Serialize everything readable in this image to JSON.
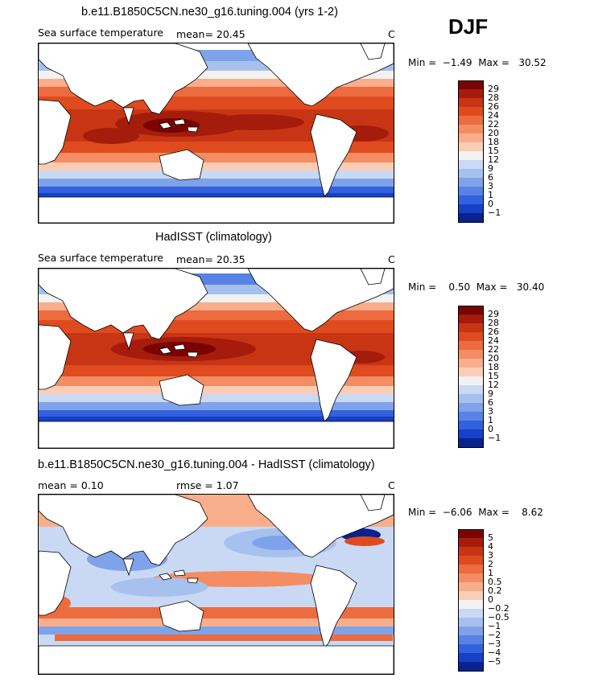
{
  "season": "DJF",
  "panels": [
    {
      "title": "b.e11.B1850C5CN.ne30_g16.tuning.004 (yrs 1-2)",
      "variable": "Sea surface temperature",
      "stat1": "mean=   20.45",
      "stat2": "",
      "units": "C",
      "minmax": "Min =  −1.49  Max =   30.52",
      "colorbar": {
        "colors": [
          "#7a0403",
          "#a51c0c",
          "#c73515",
          "#df4b1e",
          "#ec6b3f",
          "#f48d63",
          "#f8ae8b",
          "#fbcdb5",
          "#f2f2f2",
          "#c9d9f4",
          "#a7c1ee",
          "#7fa3ea",
          "#5882e6",
          "#3360dd",
          "#1640c6",
          "#08228f"
        ],
        "labels": [
          "29",
          "28",
          "26",
          "24",
          "22",
          "20",
          "18",
          "15",
          "12",
          "9",
          "6",
          "3",
          "1",
          "0",
          "−1"
        ]
      }
    },
    {
      "title": "HadISST (climatology)",
      "variable": "Sea surface temperature",
      "stat1": "mean=   20.35",
      "stat2": "",
      "units": "C",
      "minmax": "Min =    0.50  Max =   30.40",
      "colorbar": {
        "colors": [
          "#7a0403",
          "#a51c0c",
          "#c73515",
          "#df4b1e",
          "#ec6b3f",
          "#f48d63",
          "#f8ae8b",
          "#fbcdb5",
          "#f2f2f2",
          "#c9d9f4",
          "#a7c1ee",
          "#7fa3ea",
          "#5882e6",
          "#3360dd",
          "#1640c6",
          "#08228f"
        ],
        "labels": [
          "29",
          "28",
          "26",
          "24",
          "22",
          "20",
          "18",
          "15",
          "12",
          "9",
          "6",
          "3",
          "1",
          "0",
          "−1"
        ]
      }
    },
    {
      "title": "b.e11.B1850C5CN.ne30_g16.tuning.004 - HadISST (climatology)",
      "variable": "",
      "stat1": "mean =     0.10",
      "stat2": "rmse =     1.07",
      "units": "C",
      "minmax": "Min =  −6.06  Max =    8.62",
      "colorbar": {
        "colors": [
          "#7a0403",
          "#a51c0c",
          "#c73515",
          "#df4b1e",
          "#ec6b3f",
          "#f48d63",
          "#f8ae8b",
          "#fbcdb5",
          "#f2f2f2",
          "#c9d9f4",
          "#a7c1ee",
          "#7fa3ea",
          "#5882e6",
          "#3360dd",
          "#1640c6",
          "#08228f"
        ],
        "labels": [
          "5",
          "4",
          "3",
          "2",
          "1",
          "0.5",
          "0.2",
          "0",
          "−0.2",
          "−0.5",
          "−1",
          "−2",
          "−3",
          "−4",
          "−5"
        ]
      }
    }
  ]
}
